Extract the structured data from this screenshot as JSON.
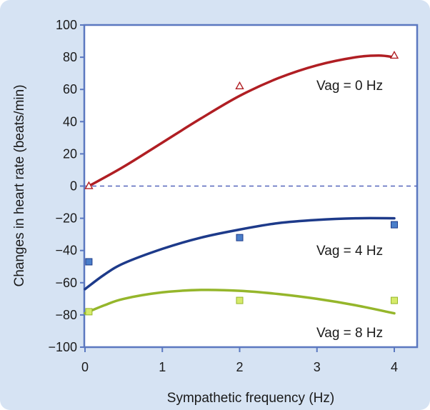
{
  "chart_data": {
    "type": "scatter",
    "xlabel": "Sympathetic frequency (Hz)",
    "ylabel": "Changes in heart rate (beats/min)",
    "xlim": [
      0,
      4.2
    ],
    "ylim": [
      -100,
      100
    ],
    "xticks": [
      0,
      1,
      2,
      3,
      4
    ],
    "yticks": [
      100,
      80,
      60,
      40,
      20,
      0,
      -20,
      -40,
      -60,
      -80,
      -100
    ],
    "reference_line": {
      "y": 0,
      "style": "dashed",
      "color": "#5566bb"
    },
    "series": [
      {
        "name": "Vag = 0 Hz",
        "color": "#b01e23",
        "marker": "triangle-open",
        "points": [
          {
            "x": 0.05,
            "y": 0
          },
          {
            "x": 2,
            "y": 62
          },
          {
            "x": 4,
            "y": 81
          }
        ],
        "fit_curve": [
          {
            "x": 0.05,
            "y": 0
          },
          {
            "x": 0.5,
            "y": 12
          },
          {
            "x": 1,
            "y": 27
          },
          {
            "x": 1.5,
            "y": 42
          },
          {
            "x": 2,
            "y": 56
          },
          {
            "x": 2.5,
            "y": 67
          },
          {
            "x": 3,
            "y": 75
          },
          {
            "x": 3.5,
            "y": 80
          },
          {
            "x": 3.8,
            "y": 81
          },
          {
            "x": 4,
            "y": 80
          }
        ]
      },
      {
        "name": "Vag = 4 Hz",
        "color": "#1d3a8a",
        "marker": "square",
        "marker_fill": "#4a7ec9",
        "points": [
          {
            "x": 0.05,
            "y": -47
          },
          {
            "x": 2,
            "y": -32
          },
          {
            "x": 4,
            "y": -24
          }
        ],
        "fit_curve": [
          {
            "x": 0,
            "y": -64
          },
          {
            "x": 0.25,
            "y": -55
          },
          {
            "x": 0.5,
            "y": -48
          },
          {
            "x": 1,
            "y": -39
          },
          {
            "x": 1.5,
            "y": -32
          },
          {
            "x": 2,
            "y": -27
          },
          {
            "x": 2.5,
            "y": -23
          },
          {
            "x": 3,
            "y": -21
          },
          {
            "x": 3.5,
            "y": -20
          },
          {
            "x": 4,
            "y": -20
          }
        ]
      },
      {
        "name": "Vag = 8 Hz",
        "color": "#95b62b",
        "marker": "square",
        "marker_fill": "#d6ea6a",
        "points": [
          {
            "x": 0.05,
            "y": -78
          },
          {
            "x": 2,
            "y": -71
          },
          {
            "x": 4,
            "y": -71
          }
        ],
        "fit_curve": [
          {
            "x": 0,
            "y": -79
          },
          {
            "x": 0.25,
            "y": -74
          },
          {
            "x": 0.5,
            "y": -70
          },
          {
            "x": 1,
            "y": -66
          },
          {
            "x": 1.5,
            "y": -64.5
          },
          {
            "x": 2,
            "y": -65
          },
          {
            "x": 2.5,
            "y": -67
          },
          {
            "x": 3,
            "y": -70
          },
          {
            "x": 3.5,
            "y": -74
          },
          {
            "x": 4,
            "y": -79
          }
        ]
      }
    ]
  }
}
